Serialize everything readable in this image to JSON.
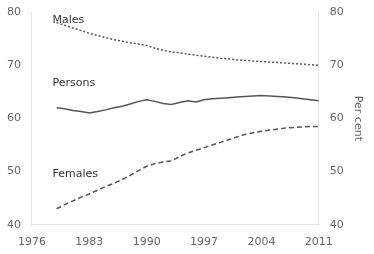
{
  "chart_data": {
    "type": "line",
    "ylabel_right": "Per cent",
    "xlim": [
      1976,
      2011
    ],
    "xticks": [
      1976,
      1983,
      1990,
      1997,
      2004,
      2011
    ],
    "ylim": [
      40,
      80
    ],
    "yticks": [
      40,
      50,
      60,
      70,
      80
    ],
    "y2lim": [
      40,
      80
    ],
    "y2ticks": [
      40,
      50,
      60,
      70,
      80
    ],
    "grid": false,
    "x": [
      1979,
      1980,
      1981,
      1982,
      1983,
      1984,
      1985,
      1986,
      1987,
      1988,
      1989,
      1990,
      1991,
      1992,
      1993,
      1994,
      1995,
      1996,
      1997,
      1998,
      1999,
      2000,
      2001,
      2002,
      2003,
      2004,
      2005,
      2006,
      2007,
      2008,
      2009,
      2010,
      2011
    ],
    "series": [
      {
        "color": "#555555",
        "line_style": "dotted",
        "values": [
          78.0,
          77.5,
          77.0,
          76.5,
          76.0,
          75.6,
          75.2,
          74.8,
          74.5,
          74.2,
          74.0,
          73.7,
          73.2,
          72.8,
          72.5,
          72.3,
          72.1,
          71.9,
          71.7,
          71.5,
          71.3,
          71.2,
          71.0,
          70.9,
          70.8,
          70.7,
          70.6,
          70.5,
          70.4,
          70.3,
          70.2,
          70.1,
          70.0
        ]
      },
      {
        "color": "#555555",
        "line_style": "solid",
        "values": [
          62.0,
          61.8,
          61.5,
          61.3,
          61.0,
          61.3,
          61.6,
          62.0,
          62.3,
          62.7,
          63.2,
          63.5,
          63.2,
          62.8,
          62.6,
          63.0,
          63.3,
          63.1,
          63.5,
          63.7,
          63.8,
          63.9,
          64.0,
          64.1,
          64.2,
          64.3,
          64.2,
          64.1,
          64.0,
          63.9,
          63.7,
          63.5,
          63.3
        ]
      },
      {
        "color": "#555555",
        "line_style": "dashed",
        "values": [
          43.0,
          43.8,
          44.5,
          45.2,
          45.8,
          46.5,
          47.2,
          47.8,
          48.5,
          49.3,
          50.2,
          51.0,
          51.5,
          51.8,
          52.0,
          52.8,
          53.5,
          54.0,
          54.5,
          55.0,
          55.5,
          56.0,
          56.5,
          57.0,
          57.3,
          57.6,
          57.8,
          58.0,
          58.2,
          58.3,
          58.4,
          58.5,
          58.5
        ]
      }
    ],
    "annotations": [
      {
        "text": "Males",
        "x": 1978.5,
        "y": 77.5
      },
      {
        "text": "Persons",
        "x": 1978.5,
        "y": 65.5
      },
      {
        "text": "Females",
        "x": 1978.5,
        "y": 48.5
      }
    ]
  }
}
